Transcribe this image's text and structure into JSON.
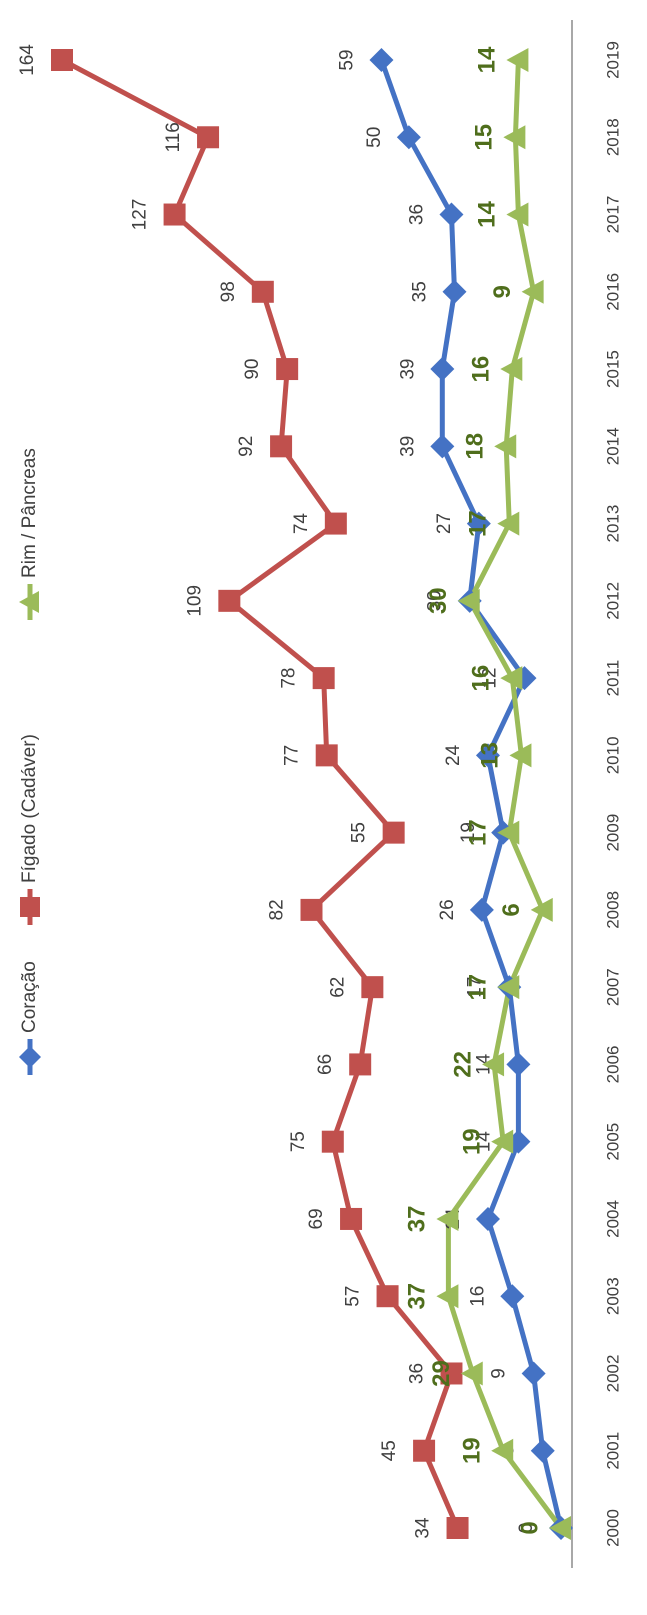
{
  "chart_data": {
    "type": "line",
    "orientation": "rotated-90-ccw",
    "x": [
      "2000",
      "2001",
      "2002",
      "2003",
      "2004",
      "2005",
      "2006",
      "2007",
      "2008",
      "2009",
      "2010",
      "2011",
      "2012",
      "2013",
      "2014",
      "2015",
      "2016",
      "2017",
      "2018",
      "2019"
    ],
    "series": [
      {
        "name": "Coração",
        "color": "#4472C4",
        "marker": "diamond",
        "values": [
          0,
          6,
          9,
          16,
          24,
          14,
          14,
          17,
          26,
          19,
          24,
          12,
          30,
          27,
          39,
          39,
          35,
          36,
          50,
          59
        ]
      },
      {
        "name": "Fígado (Cadáver)",
        "color": "#C0504D",
        "marker": "square",
        "values": [
          34,
          45,
          36,
          57,
          69,
          75,
          66,
          62,
          82,
          55,
          77,
          78,
          109,
          74,
          92,
          90,
          98,
          127,
          116,
          164
        ]
      },
      {
        "name": "Rim / Pâncreas",
        "color": "#9BBB59",
        "marker": "triangle",
        "values": [
          0,
          19,
          29,
          37,
          37,
          19,
          22,
          17,
          6,
          17,
          13,
          16,
          30,
          17,
          18,
          16,
          9,
          14,
          15,
          14
        ]
      }
    ],
    "ylim": [
      0,
      170
    ],
    "legend_position": "top"
  }
}
